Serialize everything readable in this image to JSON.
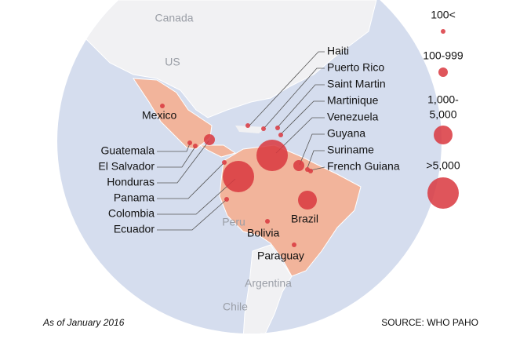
{
  "map": {
    "regions": [
      "Canada",
      "US",
      "Peru",
      "Argentina",
      "Chile"
    ],
    "affected": [
      "Mexico",
      "Guatemala",
      "El Salvador",
      "Honduras",
      "Panama",
      "Colombia",
      "Ecuador",
      "Haiti",
      "Puerto Rico",
      "Saint Martin",
      "Martinique",
      "Venezuela",
      "Guyana",
      "Suriname",
      "French Guiana",
      "Brazil",
      "Bolivia",
      "Paraguay"
    ],
    "legend": [
      [
        "100<"
      ],
      [
        "100-999"
      ],
      [
        "1,000-",
        "5,000"
      ],
      [
        ">5,000"
      ]
    ],
    "note": "As of January 2016",
    "source": "SOURCE: WHO PAHO"
  }
}
